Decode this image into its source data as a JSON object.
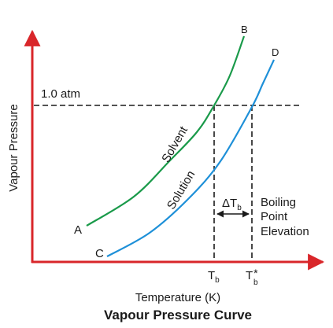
{
  "chart_data": {
    "type": "line",
    "title": "Vapour Pressure Curve",
    "xlabel": "Temperature (K)",
    "ylabel": "Vapour Pressure",
    "grid": false,
    "legend": "none",
    "colors": {
      "axes": "#d9262a",
      "solvent": "#1a9a4a",
      "solution": "#1e90d8",
      "text": "#1a1a1a"
    },
    "reference_line": {
      "label": "1.0 atm"
    },
    "series": [
      {
        "name": "Solvent",
        "start_label": "A",
        "end_label": "B",
        "points": [
          [
            110,
            287
          ],
          [
            170,
            250
          ],
          [
            215,
            205
          ],
          [
            250,
            168
          ],
          [
            272,
            134
          ],
          [
            292,
            96
          ],
          [
            310,
            46
          ]
        ]
      },
      {
        "name": "Solution",
        "start_label": "C",
        "end_label": "D",
        "points": [
          [
            136,
            326
          ],
          [
            190,
            296
          ],
          [
            240,
            252
          ],
          [
            280,
            205
          ],
          [
            320,
            136
          ],
          [
            334,
            106
          ],
          [
            348,
            76
          ]
        ]
      }
    ],
    "x_ticks": [
      {
        "main": "T",
        "sub": "b",
        "sup": ""
      },
      {
        "main": "T",
        "sub": "b",
        "sup": "*"
      }
    ],
    "annotation": {
      "delta_main": "ΔT",
      "delta_sub": "b",
      "text_lines": [
        "Boiling",
        "Point",
        "Elevation"
      ]
    }
  }
}
